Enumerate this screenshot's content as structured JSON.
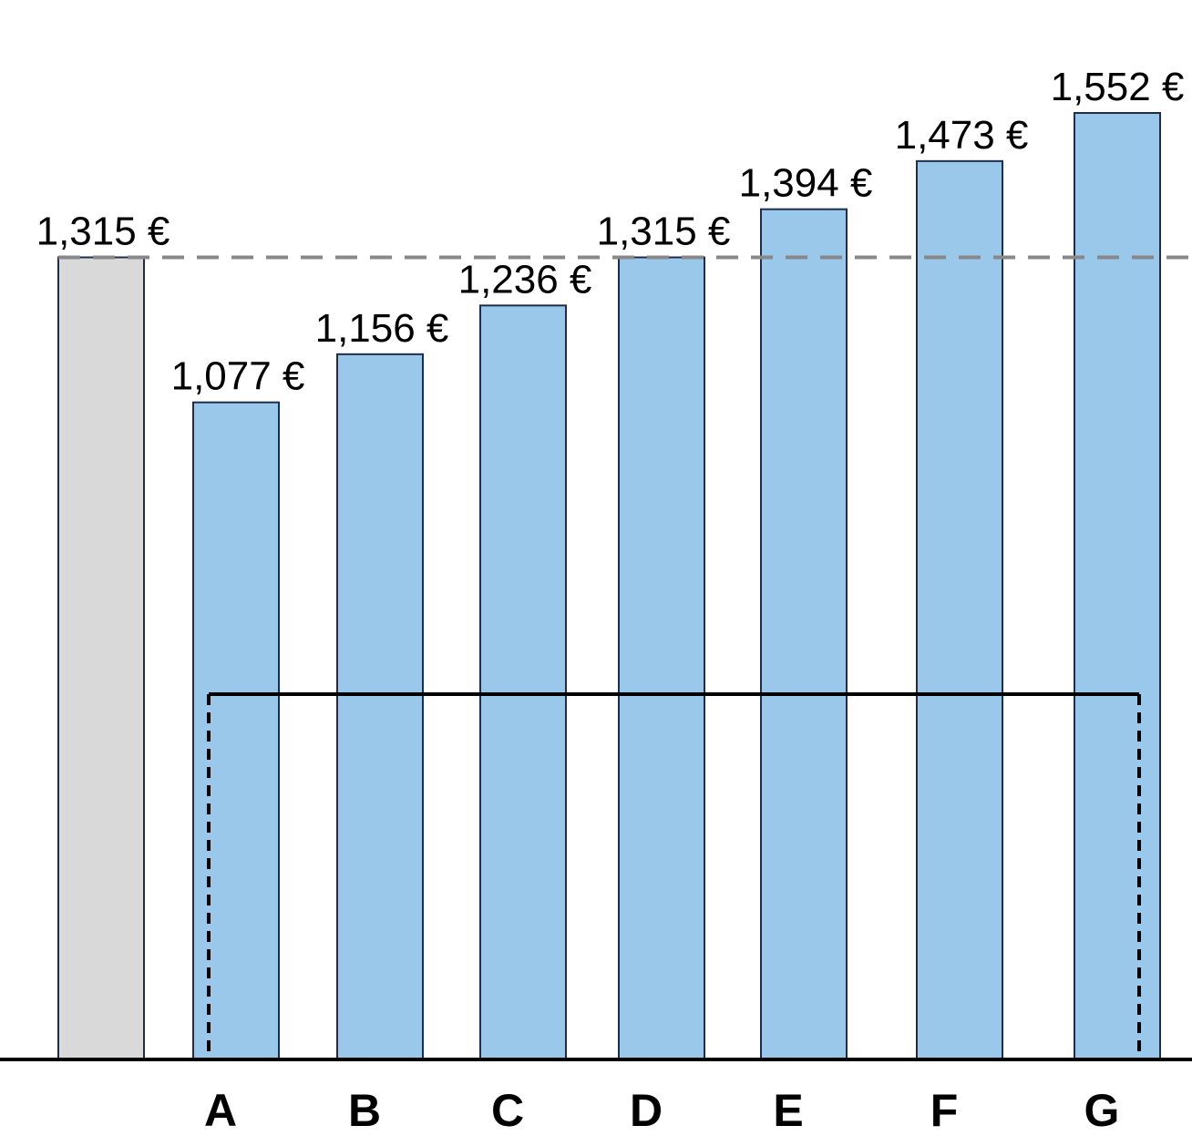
{
  "chart_data": {
    "type": "bar",
    "title": "",
    "xlabel": "",
    "ylabel": "",
    "ylim": [
      0,
      1552
    ],
    "grid": false,
    "legend": "none",
    "categories": [
      "",
      "A",
      "B",
      "C",
      "D",
      "E",
      "F",
      "G"
    ],
    "values": [
      1315,
      1077,
      1156,
      1236,
      1315,
      1394,
      1473,
      1552
    ],
    "value_labels": [
      "1,315 €",
      "1,077 €",
      "1,156 €",
      "1,236 €",
      "1,315 €",
      "1,394 €",
      "1,473 €",
      "1,552 €"
    ],
    "bar_colors": [
      "#d9d9d9",
      "#99c8ea",
      "#99c8ea",
      "#99c8ea",
      "#99c8ea",
      "#99c8ea",
      "#99c8ea",
      "#99c8ea"
    ],
    "reference_line": {
      "value": 1315,
      "style": "dashed",
      "color": "#888888"
    },
    "bracket": {
      "from": "A",
      "to": "G"
    }
  }
}
